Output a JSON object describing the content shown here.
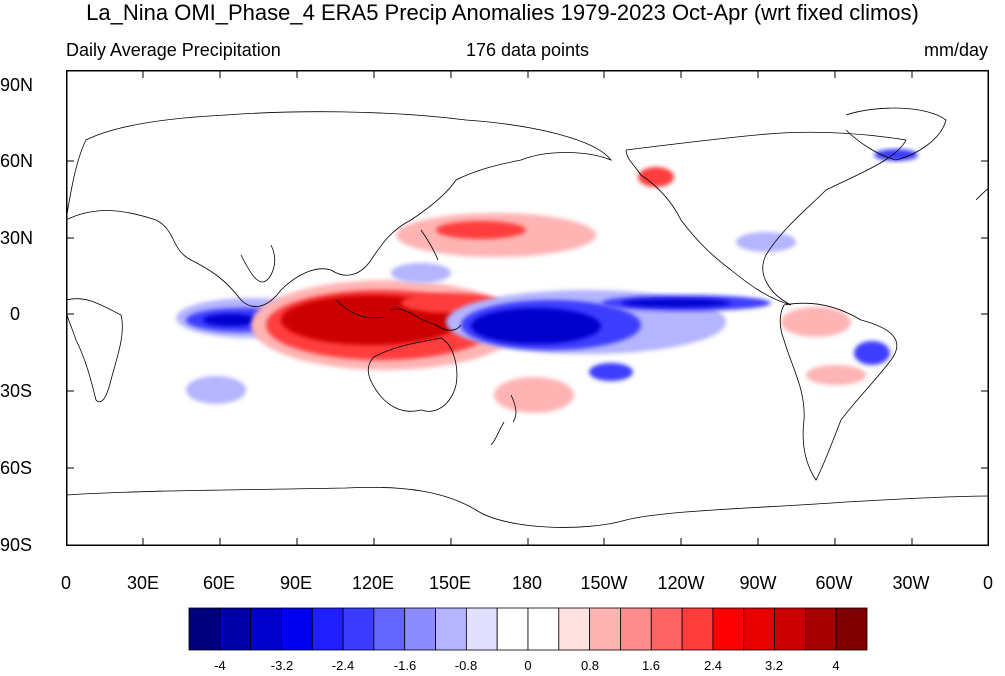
{
  "title": "La_Nina OMI_Phase_4 ERA5 Precip Anomalies 1979-2023 Oct-Apr (wrt fixed climos)",
  "subtitle": {
    "left": "Daily Average Precipitation",
    "center": "176 data points",
    "right": "mm/day"
  },
  "lat_labels": [
    "90N",
    "60N",
    "30N",
    "0",
    "30S",
    "60S",
    "90S"
  ],
  "lon_labels": [
    "0",
    "30E",
    "60E",
    "90E",
    "120E",
    "150E",
    "180",
    "150W",
    "120W",
    "90W",
    "60W",
    "30W",
    "0"
  ],
  "colorbar": {
    "labels": [
      "-4",
      "-3.2",
      "-2.4",
      "-1.6",
      "-0.8",
      "0",
      "0.8",
      "1.6",
      "2.4",
      "3.2",
      "4"
    ],
    "colors": [
      "#00007f",
      "#0000a6",
      "#0000cc",
      "#0000f0",
      "#1e1eff",
      "#3c3cff",
      "#6464ff",
      "#8c8cff",
      "#b4b4ff",
      "#e1e1ff",
      "#ffffff",
      "#ffffff",
      "#ffe1e1",
      "#ffb4b4",
      "#ff8c8c",
      "#ff6464",
      "#ff3c3c",
      "#ff0000",
      "#e60000",
      "#cc0000",
      "#a60000",
      "#7f0000"
    ]
  },
  "anomaly_colors": {
    "dry_strong": "#0000cc",
    "dry_mid": "#3c3cff",
    "dry_weak": "#b4b4ff",
    "wet_strong": "#cc0000",
    "wet_mid": "#ff3c3c",
    "wet_weak": "#ffb4b4"
  }
}
